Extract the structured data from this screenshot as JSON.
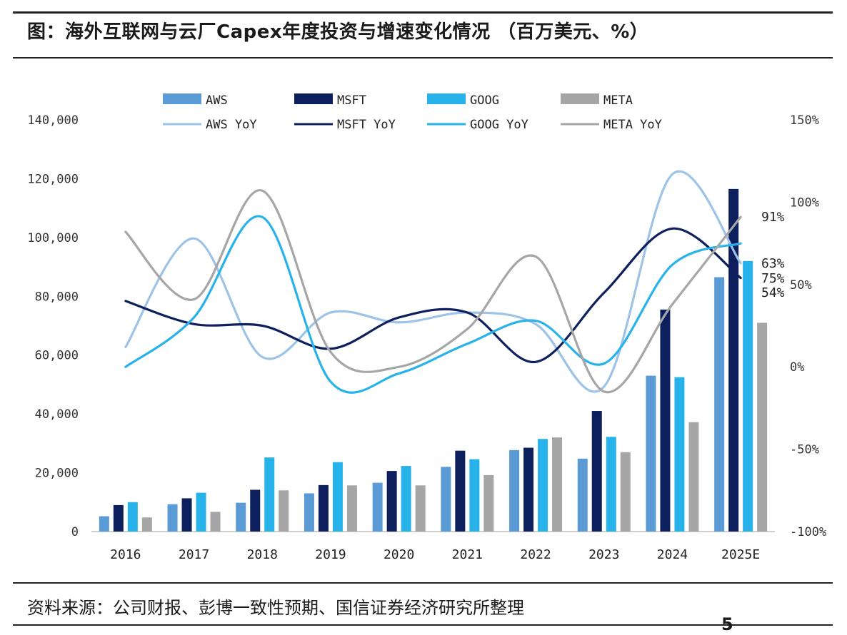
{
  "title": "图：海外互联网与云厂Capex年度投资与增速变化情况 （百万美元、%）",
  "source": "资料来源：公司财报、彭博一致性预期、国信证券经济研究所整理",
  "footer_mark": "5",
  "chart_data": {
    "type": "bar+line",
    "categories": [
      "2016",
      "2017",
      "2018",
      "2019",
      "2020",
      "2021",
      "2022",
      "2023",
      "2024",
      "2025E"
    ],
    "left_axis": {
      "min": 0,
      "max": 140000,
      "ticks": [
        "0",
        "20,000",
        "40,000",
        "60,000",
        "80,000",
        "100,000",
        "120,000",
        "140,000"
      ]
    },
    "right_axis": {
      "min": -100,
      "max": 150,
      "ticks": [
        "-100%",
        "-50%",
        "0%",
        "50%",
        "100%",
        "150%"
      ]
    },
    "bar_series": [
      {
        "name": "AWS",
        "color": "#5b9bd5",
        "values": [
          5200,
          9300,
          9800,
          13000,
          16600,
          22000,
          27700,
          24800,
          53000,
          86500
        ]
      },
      {
        "name": "MSFT",
        "color": "#0d1f5c",
        "values": [
          9000,
          11300,
          14200,
          15800,
          20600,
          27500,
          28500,
          41000,
          75500,
          116500
        ]
      },
      {
        "name": "GOOG",
        "color": "#27b2ea",
        "values": [
          10000,
          13200,
          25200,
          23600,
          22300,
          24600,
          31500,
          32200,
          52500,
          92000
        ]
      },
      {
        "name": "META",
        "color": "#a6a6a6",
        "values": [
          4800,
          6700,
          14000,
          15700,
          15700,
          19200,
          32000,
          27000,
          37200,
          71000
        ]
      }
    ],
    "line_series": [
      {
        "name": "AWS YoY",
        "color": "#9dc3e6",
        "values": [
          12,
          78,
          6,
          33,
          27,
          33,
          26,
          -12,
          117,
          63
        ]
      },
      {
        "name": "MSFT YoY",
        "color": "#0d1f5c",
        "values": [
          40,
          26,
          25,
          11,
          30,
          33,
          3,
          45,
          84,
          54
        ]
      },
      {
        "name": "GOOG YoY",
        "color": "#27b2ea",
        "values": [
          0,
          30,
          91,
          -9,
          -4,
          14,
          28,
          2,
          62,
          75
        ]
      },
      {
        "name": "META YoY",
        "color": "#a6a6a6",
        "values": [
          82,
          41,
          107,
          9,
          0,
          23,
          67,
          -15,
          38,
          91
        ]
      }
    ],
    "end_labels": [
      {
        "series": "META YoY",
        "text": "91%"
      },
      {
        "series": "AWS YoY",
        "text": "63%"
      },
      {
        "series": "GOOG YoY",
        "text": "75%"
      },
      {
        "series": "MSFT YoY",
        "text": "54%"
      }
    ],
    "legend_placement": "top",
    "grid": false
  }
}
